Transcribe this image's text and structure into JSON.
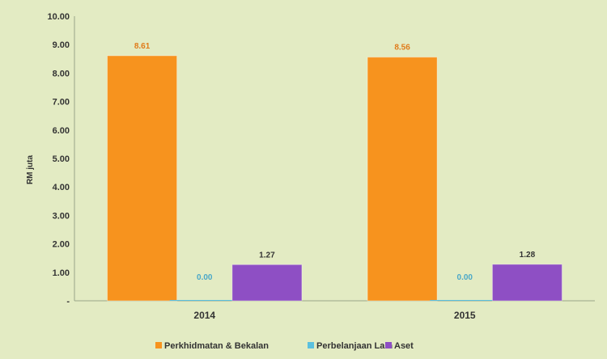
{
  "chart_data": {
    "type": "bar",
    "title": "",
    "xlabel": "",
    "ylabel": "RM juta",
    "ylim": [
      0,
      10
    ],
    "y_ticks": [
      "-",
      "1.00",
      "2.00",
      "3.00",
      "4.00",
      "5.00",
      "6.00",
      "7.00",
      "8.00",
      "9.00",
      "10.00"
    ],
    "categories": [
      "2014",
      "2015"
    ],
    "series": [
      {
        "name": "Perkhidmatan & Bekalan",
        "values": [
          8.61,
          8.56
        ],
        "labels": [
          "8.61",
          "8.56"
        ],
        "color": "#f7931e",
        "label_color": "#e07b1a"
      },
      {
        "name": "Perbelanjaan Lain",
        "values": [
          0.0,
          0.0
        ],
        "labels": [
          "0.00",
          "0.00"
        ],
        "color": "#5bc0de",
        "label_color": "#4aa8c8"
      },
      {
        "name": "Aset",
        "values": [
          1.27,
          1.28
        ],
        "labels": [
          "1.27",
          "1.28"
        ],
        "color": "#8e4fc4",
        "label_color": "#333333"
      }
    ],
    "grid": false,
    "legend_position": "bottom",
    "background": "#e3ebc3",
    "plot_background": "#e3ebc3"
  }
}
